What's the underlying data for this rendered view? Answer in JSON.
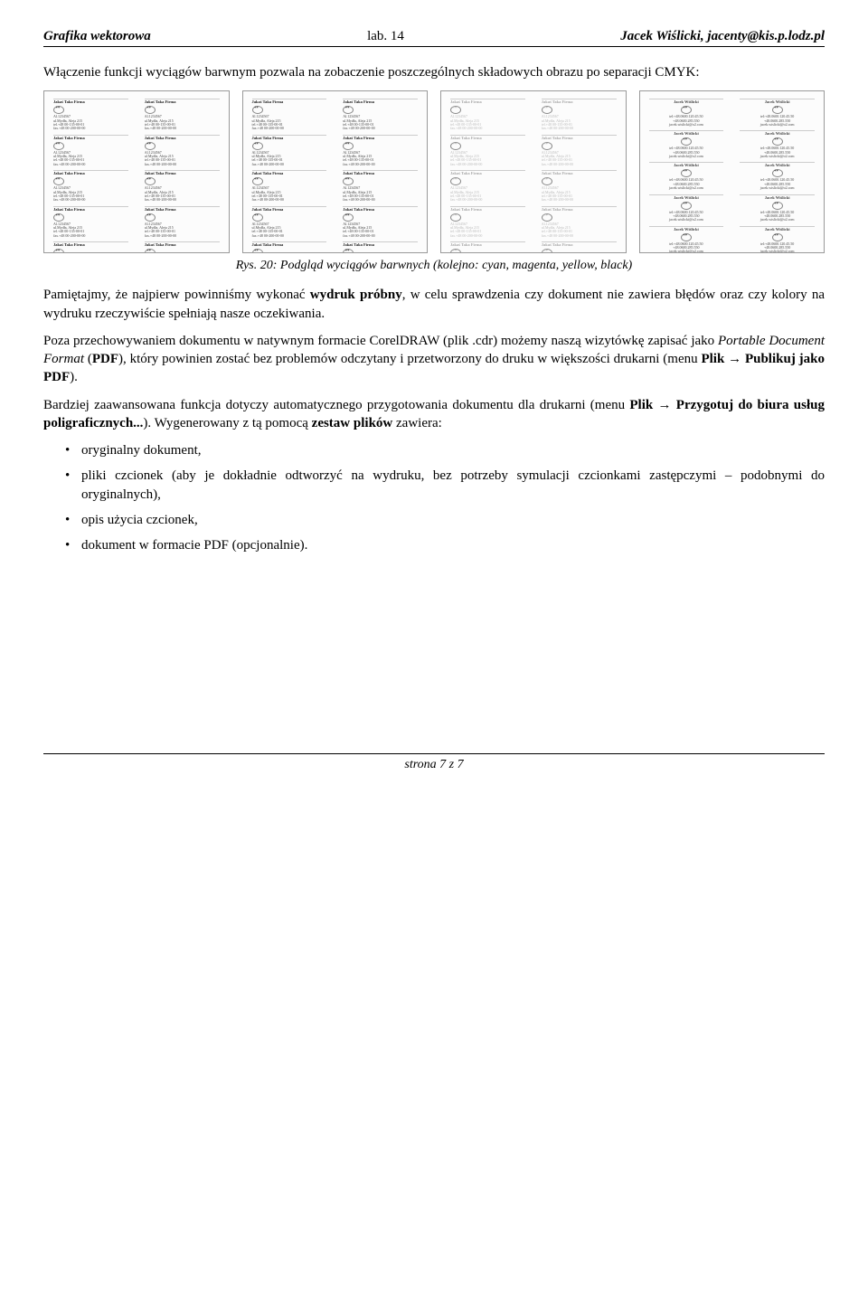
{
  "header": {
    "left": "Grafika wektorowa",
    "center": "lab. 14",
    "right": "Jacek Wiślicki, jacenty@kis.p.lodz.pl"
  },
  "intro": "Włączenie funkcji wyciągów barwnym pozwala na zobaczenie poszczególnych składowych obrazu po separacji CMYK:",
  "thumbs": {
    "cells": [
      {
        "title": "Jakaś Taka Firma",
        "l1": "Al.1234567",
        "l2": "ul.Mydła, Aleja 215",
        "l3": "tel.+48 00-135-00-01",
        "l4": "fax.+48 00-200-00-00"
      },
      {
        "name": "Jacek Wiślicki",
        "l1": "tel:+48.0600.120.45.50",
        "l2": "+48.0600.285.550",
        "l3": "jacek.wislicki@o2.com"
      }
    ]
  },
  "caption": "Rys. 20: Podgląd wyciągów barwnych (kolejno: cyan, magenta, yellow, black)",
  "para1_pre": "Pamiętajmy, że najpierw powinniśmy wykonać ",
  "para1_b1": "wydruk próbny",
  "para1_post": ", w celu sprawdzenia czy dokument nie zawiera błędów oraz czy kolory na wydruku rzeczywiście spełniają nasze oczekiwania.",
  "para2_a": "Poza przechowywaniem dokumentu w natywnym formacie CorelDRAW (plik .cdr) możemy naszą wizytówkę zapisać jako ",
  "para2_i": "Portable Document Format",
  "para2_b": " (",
  "para2_bold": "PDF",
  "para2_c": "), który powinien zostać bez problemów odczytany i przetworzony do druku w większości drukarni (menu ",
  "para2_m1": "Plik → Publikuj jako PDF",
  "para2_d": ").",
  "para3_a": "Bardziej zaawansowana funkcja dotyczy automatycznego przygotowania dokumentu dla drukarni (menu ",
  "para3_m1": "Plik → Przygotuj do biura usług poligraficznych...",
  "para3_b": "). Wygenerowany z tą pomocą ",
  "para3_bold": "zestaw plików",
  "para3_c": " zawiera:",
  "bullets": [
    "oryginalny dokument,",
    "pliki czcionek (aby je dokładnie odtworzyć na wydruku, bez potrzeby symulacji czcionkami zastępczymi – podobnymi do oryginalnych),",
    "opis użycia czcionek,",
    "dokument w formacie PDF (opcjonalnie)."
  ],
  "footer": "strona 7 z 7"
}
